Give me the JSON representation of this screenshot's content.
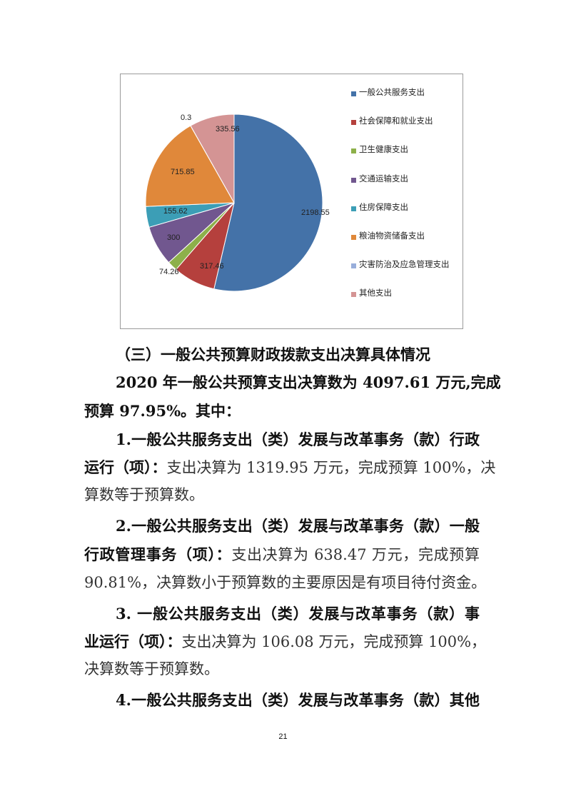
{
  "chart_data": {
    "type": "pie",
    "title": "",
    "start": "12 o'clock, clockwise",
    "legend_position": "right",
    "slices": [
      {
        "name": "一般公共服务支出",
        "value": 2198.55,
        "label": "2198.55",
        "color": "#4472A8"
      },
      {
        "name": "社会保障和就业支出",
        "value": 317.46,
        "label": "317.46",
        "color": "#B5403D"
      },
      {
        "name": "卫生健康支出",
        "value": 74.26,
        "label": "74.26",
        "color": "#8DB04A"
      },
      {
        "name": "交通运输支出",
        "value": 300,
        "label": "300",
        "color": "#71578F"
      },
      {
        "name": "住房保障支出",
        "value": 155.62,
        "label": "155.62",
        "color": "#3C9EB6"
      },
      {
        "name": "粮油物资储备支出",
        "value": 715.85,
        "label": "715.85",
        "color": "#E0883A"
      },
      {
        "name": "灾害防治及应急管理支出",
        "value": 0.3,
        "label": "0.3",
        "color": "#98AEDB"
      },
      {
        "name": "其他支出",
        "value": 335.56,
        "label": "335.56",
        "color": "#D49494"
      }
    ]
  },
  "lines": [
    [
      {
        "t": "（三）一般公共预算财政拨款支出决算具体情况",
        "b": true
      }
    ],
    [
      {
        "t": "2020 年一般公共预算支出决算数为 4097.61 万元,完成",
        "b": true
      }
    ],
    [
      {
        "t": "预算 97.95%。其中：",
        "b": true
      }
    ],
    [
      {
        "t": "1.一般公共服务支出（类）发展与改革事务（款）行政",
        "b": true
      }
    ],
    [
      {
        "t": "运行（项）：",
        "b": true
      },
      {
        "t": "支出决算为 1319.95 万元，完成预算 100%，决",
        "b": false
      }
    ],
    [
      {
        "t": "算数等于预算数。",
        "b": false
      }
    ],
    [
      {
        "t": "2.一般公共服务支出（类）发展与改革事务（款）一般",
        "b": true
      }
    ],
    [
      {
        "t": "行政管理事务（项）：",
        "b": true
      },
      {
        "t": "支出决算为 638.47 万元，完成预算",
        "b": false
      }
    ],
    [
      {
        "t": "90.81%，决算数小于预算数的主要原因是有项目待付资金。",
        "b": false
      }
    ],
    [
      {
        "t": "3. 一般公共服务支出（类）发展与改革事务（款）事",
        "b": true
      }
    ],
    [
      {
        "t": "业运行（项）：",
        "b": true
      },
      {
        "t": "支出决算为 106.08 万元，完成预算 100%，",
        "b": false
      }
    ],
    [
      {
        "t": "决算数等于预算数。",
        "b": false
      }
    ],
    [
      {
        "t": "4.一般公共服务支出（类）发展与改革事务（款）其他",
        "b": true
      }
    ]
  ],
  "page_number": "21"
}
